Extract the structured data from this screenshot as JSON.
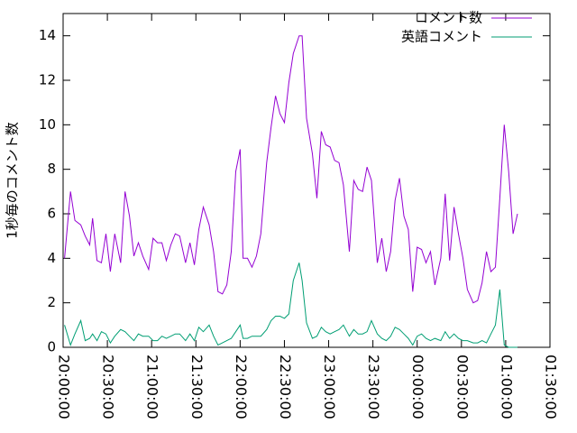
{
  "chart_data": {
    "type": "line",
    "ylabel": "1秒毎のコメント数",
    "x": [
      1,
      5,
      8,
      12,
      15,
      18,
      20,
      23,
      26,
      29,
      32,
      35,
      39,
      42,
      45,
      48,
      51,
      54,
      58,
      61,
      64,
      67,
      70,
      73,
      76,
      79,
      83,
      86,
      89,
      92,
      95,
      99,
      102,
      105,
      108,
      111,
      114,
      117,
      120,
      122,
      125,
      128,
      131,
      134,
      138,
      141,
      144,
      147,
      150,
      153,
      156,
      160,
      162,
      165,
      169,
      172,
      175,
      178,
      181,
      184,
      187,
      190,
      194,
      197,
      200,
      203,
      206,
      209,
      213,
      216,
      219,
      222,
      225,
      228,
      231,
      234,
      237,
      240,
      243,
      246,
      249,
      252,
      256,
      259,
      262,
      265,
      268,
      271,
      274,
      278,
      281,
      284,
      287,
      290,
      293,
      296,
      299,
      302,
      305,
      308
    ],
    "series": [
      {
        "name": "コメント数",
        "color": "#9400d3",
        "values": [
          4.0,
          7.0,
          5.7,
          5.5,
          5.0,
          4.6,
          5.8,
          3.9,
          3.8,
          5.1,
          3.4,
          5.1,
          3.8,
          7.0,
          5.9,
          4.1,
          4.7,
          4.1,
          3.5,
          4.9,
          4.7,
          4.7,
          3.9,
          4.6,
          5.1,
          5.0,
          3.8,
          4.7,
          3.7,
          5.3,
          6.3,
          5.5,
          4.3,
          2.5,
          2.4,
          2.8,
          4.3,
          7.9,
          8.9,
          4.0,
          4.0,
          3.6,
          4.1,
          5.1,
          8.3,
          9.9,
          11.3,
          10.5,
          10.1,
          11.9,
          13.2,
          14.0,
          14.0,
          10.3,
          8.7,
          6.7,
          9.7,
          9.1,
          9.0,
          8.4,
          8.3,
          7.3,
          4.3,
          7.5,
          7.1,
          7.0,
          8.1,
          7.5,
          3.8,
          4.9,
          3.4,
          4.3,
          6.6,
          7.6,
          5.9,
          5.3,
          2.5,
          4.5,
          4.4,
          3.8,
          4.3,
          2.8,
          4.0,
          6.9,
          3.9,
          6.3,
          5.1,
          4.0,
          2.6,
          2.0,
          2.1,
          2.9,
          4.3,
          3.4,
          3.6,
          6.7,
          10.0,
          7.9,
          5.1,
          6.0
        ]
      },
      {
        "name": "英語コメント",
        "color": "#009e73",
        "values": [
          1.0,
          0.1,
          0.6,
          1.2,
          0.3,
          0.4,
          0.6,
          0.3,
          0.7,
          0.6,
          0.2,
          0.5,
          0.8,
          0.7,
          0.5,
          0.3,
          0.6,
          0.5,
          0.5,
          0.3,
          0.3,
          0.5,
          0.4,
          0.5,
          0.6,
          0.6,
          0.3,
          0.6,
          0.3,
          0.9,
          0.7,
          1.0,
          0.5,
          0.1,
          0.2,
          0.3,
          0.4,
          0.7,
          1.0,
          0.4,
          0.4,
          0.5,
          0.5,
          0.5,
          0.8,
          1.2,
          1.4,
          1.4,
          1.3,
          1.5,
          3.0,
          3.8,
          3.0,
          1.1,
          0.4,
          0.5,
          0.9,
          0.7,
          0.6,
          0.7,
          0.8,
          1.0,
          0.5,
          0.8,
          0.6,
          0.6,
          0.7,
          1.2,
          0.6,
          0.4,
          0.3,
          0.5,
          0.9,
          0.8,
          0.6,
          0.4,
          0.1,
          0.5,
          0.6,
          0.4,
          0.3,
          0.4,
          0.3,
          0.7,
          0.4,
          0.6,
          0.4,
          0.3,
          0.3,
          0.2,
          0.2,
          0.3,
          0.2,
          0.6,
          1.0,
          2.6,
          0.1,
          0.0,
          0.0,
          0.0
        ]
      }
    ],
    "xlim": [
      0,
      330
    ],
    "xticks": [
      {
        "value": 0,
        "label": "20:00:00"
      },
      {
        "value": 30,
        "label": "20:30:00"
      },
      {
        "value": 60,
        "label": "21:00:00"
      },
      {
        "value": 90,
        "label": "21:30:00"
      },
      {
        "value": 120,
        "label": "22:00:00"
      },
      {
        "value": 150,
        "label": "22:30:00"
      },
      {
        "value": 180,
        "label": "23:00:00"
      },
      {
        "value": 210,
        "label": "23:30:00"
      },
      {
        "value": 240,
        "label": "00:00:00"
      },
      {
        "value": 270,
        "label": "00:30:00"
      },
      {
        "value": 300,
        "label": "01:00:00"
      },
      {
        "value": 330,
        "label": "01:30:00"
      }
    ],
    "ylim": [
      0,
      15
    ],
    "yticks": [
      0,
      2,
      4,
      6,
      8,
      10,
      12,
      14
    ],
    "grid": false,
    "legend": "top-right"
  }
}
